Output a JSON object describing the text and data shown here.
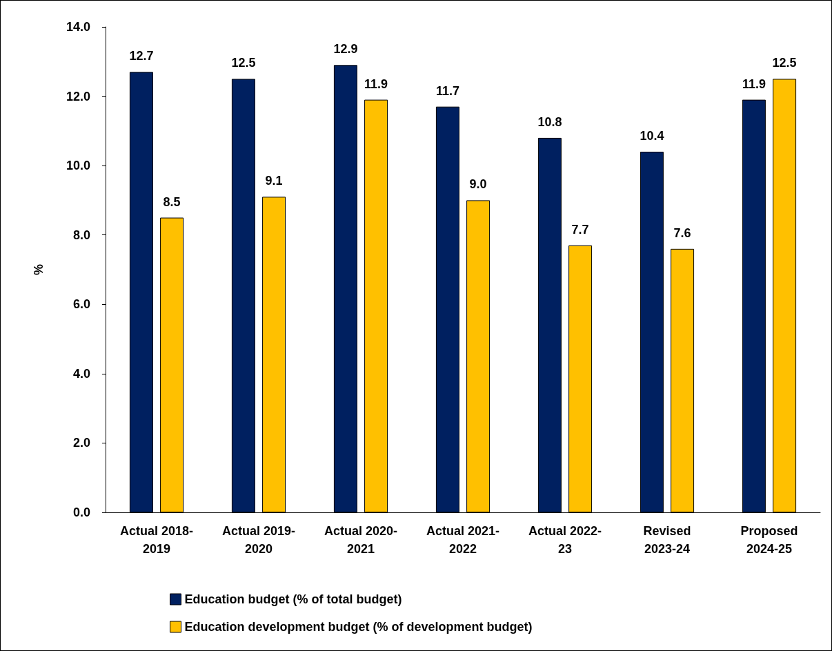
{
  "chart_data": {
    "type": "bar",
    "ylabel": "%",
    "categories": [
      "Actual 2018-\n2019",
      "Actual 2019-\n2020",
      "Actual 2020-\n2021",
      "Actual 2021-\n2022",
      "Actual 2022-\n23",
      "Revised\n2023-24",
      "Proposed\n2024-25"
    ],
    "series": [
      {
        "name": "Education budget (% of total budget)",
        "color": "#002060",
        "values": [
          12.7,
          12.5,
          12.9,
          11.7,
          10.8,
          10.4,
          11.9
        ],
        "value_labels": [
          "12.7",
          "12.5",
          "12.9",
          "11.7",
          "10.8",
          "10.4",
          "11.9"
        ]
      },
      {
        "name": "Education development budget (% of development budget)",
        "color": "#ffc000",
        "values": [
          8.5,
          9.1,
          11.9,
          9.0,
          7.7,
          7.6,
          12.5
        ],
        "value_labels": [
          "8.5",
          "9.1",
          "11.9",
          "9.0",
          "7.7",
          "7.6",
          "12.5"
        ]
      }
    ],
    "ylim": [
      0,
      14
    ],
    "yticks": [
      {
        "value": 0,
        "label": "0.0"
      },
      {
        "value": 2,
        "label": "2.0"
      },
      {
        "value": 4,
        "label": "4.0"
      },
      {
        "value": 6,
        "label": "6.0"
      },
      {
        "value": 8,
        "label": "8.0"
      },
      {
        "value": 10,
        "label": "10.0"
      },
      {
        "value": 12,
        "label": "12.0"
      },
      {
        "value": 14,
        "label": "14.0"
      }
    ],
    "grid": false,
    "legend": "bottom"
  }
}
